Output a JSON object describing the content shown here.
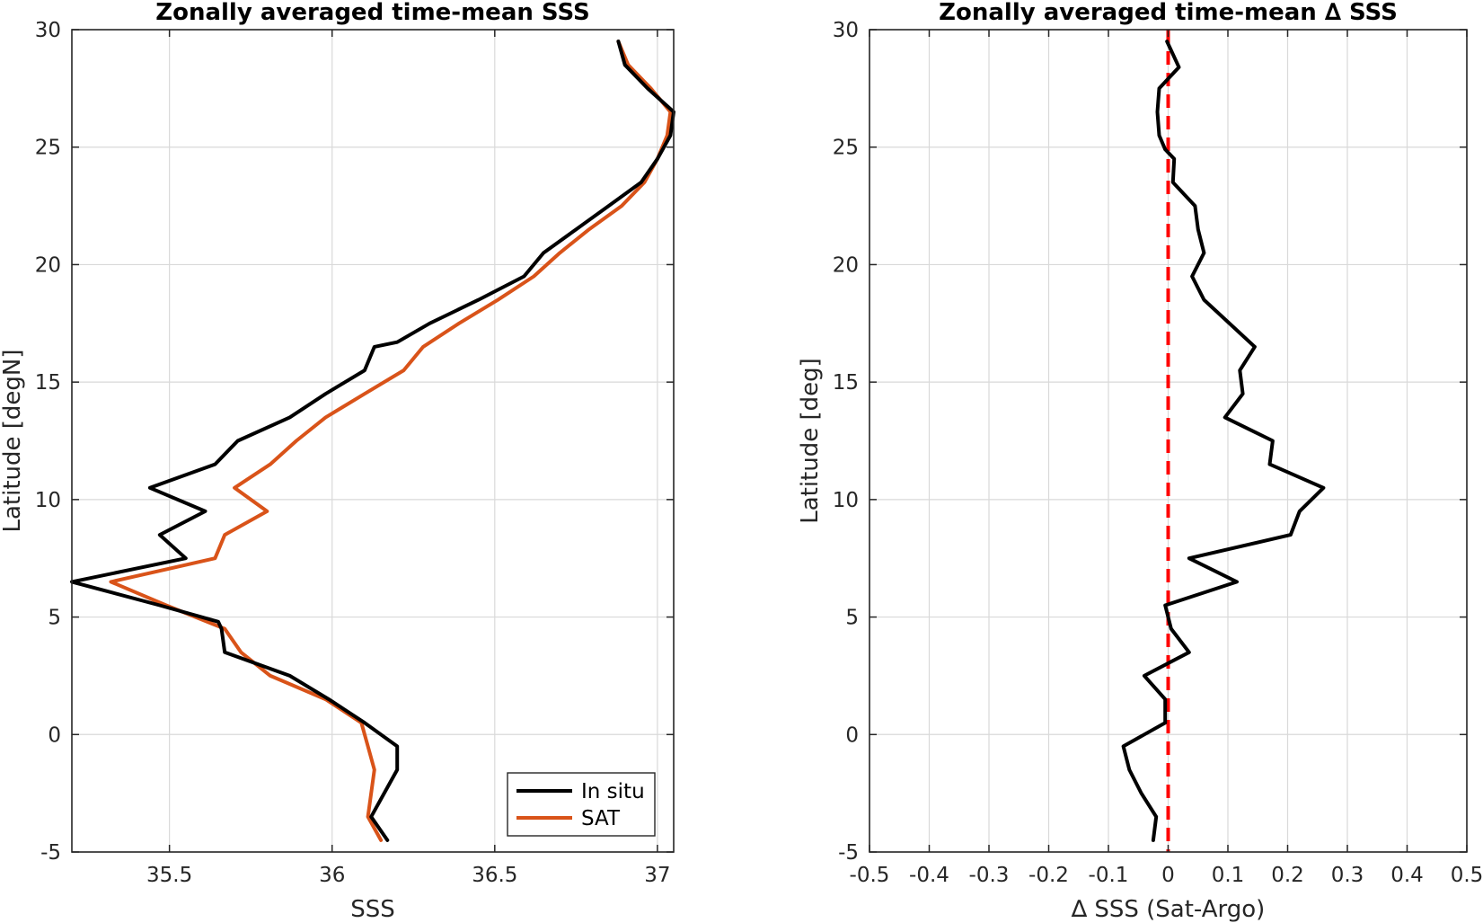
{
  "colors": {
    "in_situ": "#000000",
    "sat": "#d95319",
    "zero_line": "#ff0000",
    "grid": "#d9d9d9",
    "axis": "#262626"
  },
  "chart_data": [
    {
      "type": "line",
      "title": "Zonally averaged time-mean SSS",
      "xlabel": "SSS",
      "ylabel": "Latitude [degN]",
      "xlim": [
        35.2,
        37.05
      ],
      "ylim": [
        -5,
        30
      ],
      "xticks": [
        35.5,
        36,
        36.5,
        37
      ],
      "xtick_labels": [
        "35.5",
        "36",
        "36.5",
        "37"
      ],
      "yticks": [
        -5,
        0,
        5,
        10,
        15,
        20,
        25,
        30
      ],
      "ytick_labels": [
        "-5",
        "0",
        "5",
        "10",
        "15",
        "20",
        "25",
        "30"
      ],
      "grid": true,
      "legend": "bottom-right",
      "legend_entries": [
        "In situ",
        "SAT"
      ],
      "series": [
        {
          "name": "In situ",
          "points": [
            [
              36.88,
              29.5
            ],
            [
              36.9,
              28.5
            ],
            [
              36.97,
              27.5
            ],
            [
              37.05,
              26.5
            ],
            [
              37.04,
              25.5
            ],
            [
              37.0,
              24.5
            ],
            [
              36.95,
              23.5
            ],
            [
              36.85,
              22.5
            ],
            [
              36.75,
              21.5
            ],
            [
              36.65,
              20.5
            ],
            [
              36.59,
              19.5
            ],
            [
              36.45,
              18.5
            ],
            [
              36.3,
              17.5
            ],
            [
              36.2,
              16.7
            ],
            [
              36.13,
              16.5
            ],
            [
              36.1,
              15.5
            ],
            [
              35.98,
              14.5
            ],
            [
              35.87,
              13.5
            ],
            [
              35.71,
              12.5
            ],
            [
              35.64,
              11.5
            ],
            [
              35.44,
              10.5
            ],
            [
              35.61,
              9.5
            ],
            [
              35.47,
              8.5
            ],
            [
              35.55,
              7.5
            ],
            [
              35.2,
              6.5
            ],
            [
              35.47,
              5.5
            ],
            [
              35.65,
              4.8
            ],
            [
              35.66,
              4.5
            ],
            [
              35.67,
              3.5
            ],
            [
              35.87,
              2.5
            ],
            [
              35.99,
              1.5
            ],
            [
              36.1,
              0.5
            ],
            [
              36.2,
              -0.5
            ],
            [
              36.2,
              -1.5
            ],
            [
              36.12,
              -3.5
            ],
            [
              36.17,
              -4.5
            ]
          ]
        },
        {
          "name": "SAT",
          "points": [
            [
              36.88,
              29.5
            ],
            [
              36.91,
              28.5
            ],
            [
              36.98,
              27.5
            ],
            [
              37.04,
              26.5
            ],
            [
              37.03,
              25.5
            ],
            [
              37.0,
              24.5
            ],
            [
              36.96,
              23.5
            ],
            [
              36.89,
              22.5
            ],
            [
              36.79,
              21.5
            ],
            [
              36.7,
              20.5
            ],
            [
              36.62,
              19.5
            ],
            [
              36.51,
              18.5
            ],
            [
              36.39,
              17.5
            ],
            [
              36.28,
              16.5
            ],
            [
              36.22,
              15.5
            ],
            [
              36.1,
              14.5
            ],
            [
              35.98,
              13.5
            ],
            [
              35.89,
              12.5
            ],
            [
              35.81,
              11.5
            ],
            [
              35.7,
              10.5
            ],
            [
              35.8,
              9.5
            ],
            [
              35.67,
              8.5
            ],
            [
              35.64,
              7.5
            ],
            [
              35.32,
              6.5
            ],
            [
              35.49,
              5.5
            ],
            [
              35.67,
              4.5
            ],
            [
              35.72,
              3.5
            ],
            [
              35.81,
              2.5
            ],
            [
              35.98,
              1.5
            ],
            [
              36.09,
              0.5
            ],
            [
              36.11,
              -0.5
            ],
            [
              36.13,
              -1.5
            ],
            [
              36.11,
              -3.5
            ],
            [
              36.15,
              -4.5
            ]
          ]
        }
      ]
    },
    {
      "type": "line",
      "title": "Zonally averaged time-mean ∆ SSS",
      "xlabel": "∆ SSS (Sat-Argo)",
      "ylabel": "Latitude [deg]",
      "xlim": [
        -0.5,
        0.5
      ],
      "ylim": [
        -5,
        30
      ],
      "xticks": [
        -0.5,
        -0.4,
        -0.3,
        -0.2,
        -0.1,
        0,
        0.1,
        0.2,
        0.3,
        0.4,
        0.5
      ],
      "xtick_labels": [
        "-0.5",
        "-0.4",
        "-0.3",
        "-0.2",
        "-0.1",
        "0",
        "0.1",
        "0.2",
        "0.3",
        "0.4",
        "0.5"
      ],
      "yticks": [
        -5,
        0,
        5,
        10,
        15,
        20,
        25,
        30
      ],
      "ytick_labels": [
        "-5",
        "0",
        "5",
        "10",
        "15",
        "20",
        "25",
        "30"
      ],
      "grid": true,
      "reference_line": {
        "x": 0,
        "style": "dashed",
        "color": "#ff0000"
      },
      "series": [
        {
          "points": [
            [
              -0.002,
              29.5
            ],
            [
              0.018,
              28.4
            ],
            [
              -0.015,
              27.5
            ],
            [
              -0.018,
              26.5
            ],
            [
              -0.015,
              25.5
            ],
            [
              -0.005,
              24.9
            ],
            [
              0.01,
              24.5
            ],
            [
              0.008,
              23.5
            ],
            [
              0.045,
              22.5
            ],
            [
              0.05,
              21.5
            ],
            [
              0.06,
              20.5
            ],
            [
              0.04,
              19.5
            ],
            [
              0.06,
              18.5
            ],
            [
              0.145,
              16.5
            ],
            [
              0.12,
              15.5
            ],
            [
              0.125,
              14.5
            ],
            [
              0.095,
              13.5
            ],
            [
              0.175,
              12.5
            ],
            [
              0.17,
              11.5
            ],
            [
              0.26,
              10.5
            ],
            [
              0.22,
              9.5
            ],
            [
              0.205,
              8.5
            ],
            [
              0.035,
              7.5
            ],
            [
              0.115,
              6.5
            ],
            [
              -0.005,
              5.5
            ],
            [
              0.0,
              5.0
            ],
            [
              0.005,
              4.5
            ],
            [
              0.035,
              3.5
            ],
            [
              -0.04,
              2.5
            ],
            [
              -0.005,
              1.5
            ],
            [
              -0.005,
              0.5
            ],
            [
              -0.075,
              -0.5
            ],
            [
              -0.065,
              -1.5
            ],
            [
              -0.045,
              -2.5
            ],
            [
              -0.02,
              -3.5
            ],
            [
              -0.025,
              -4.5
            ]
          ]
        }
      ]
    }
  ]
}
